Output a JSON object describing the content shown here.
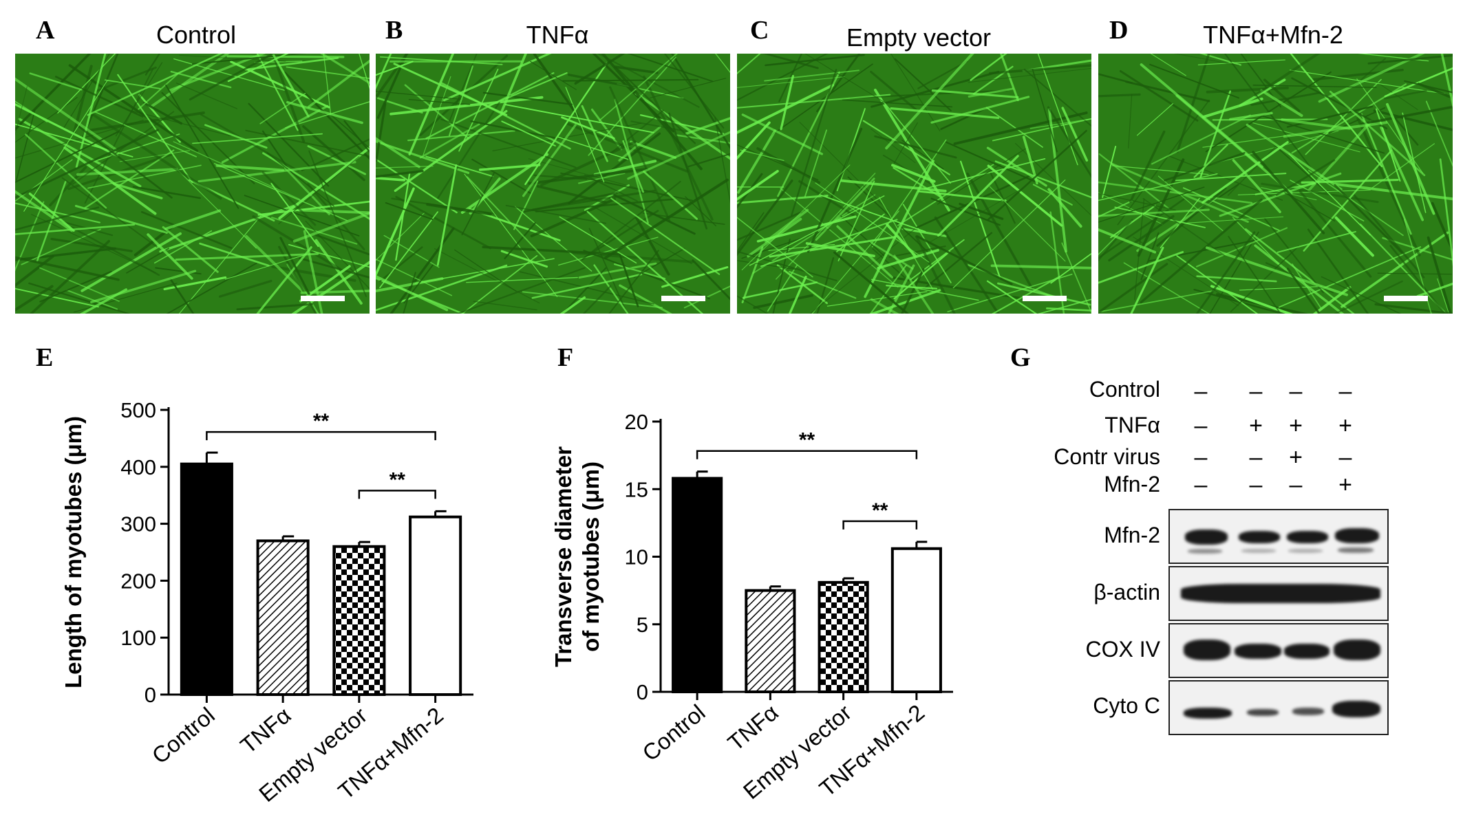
{
  "panels": {
    "A": {
      "letter": "A",
      "title": "Control"
    },
    "B": {
      "letter": "B",
      "title": "TNFα"
    },
    "C": {
      "letter": "C",
      "title": "Empty vector"
    },
    "D": {
      "letter": "D",
      "title": "TNFα+Mfn-2"
    },
    "E": {
      "letter": "E"
    },
    "F": {
      "letter": "F"
    },
    "G": {
      "letter": "G"
    }
  },
  "chart_data": [
    {
      "type": "bar",
      "title": "",
      "ylabel": "Length of myotubes (μm)",
      "xlabel": "",
      "categories": [
        "Control",
        "TNFα",
        "Empty vector",
        "TNFα+Mfn-2"
      ],
      "values": [
        405,
        270,
        260,
        312
      ],
      "errors": [
        20,
        8,
        8,
        10
      ],
      "ylim": [
        0,
        500
      ],
      "yticks": [
        "0",
        "100",
        "200",
        "300",
        "400",
        "500"
      ],
      "significance": [
        {
          "from": "Control",
          "to": "TNFα+Mfn-2",
          "label": "**"
        },
        {
          "from": "Empty vector",
          "to": "TNFα+Mfn-2",
          "label": "**"
        }
      ]
    },
    {
      "type": "bar",
      "title": "",
      "ylabel": "Transverse diameter of myotubes (μm)",
      "ylabel_lines": [
        "Transverse diameter",
        "of myotubes (μm)"
      ],
      "xlabel": "",
      "categories": [
        "Control",
        "TNFα",
        "Empty vector",
        "TNFα+Mfn-2"
      ],
      "values": [
        15.8,
        7.5,
        8.1,
        10.6
      ],
      "errors": [
        0.5,
        0.3,
        0.3,
        0.5
      ],
      "ylim": [
        0,
        20
      ],
      "yticks": [
        "0",
        "5",
        "10",
        "15",
        "20"
      ],
      "significance": [
        {
          "from": "Control",
          "to": "TNFα+Mfn-2",
          "label": "**"
        },
        {
          "from": "Empty vector",
          "to": "TNFα+Mfn-2",
          "label": "**"
        }
      ]
    }
  ],
  "western_blot": {
    "conditions": [
      {
        "label": "Control",
        "signs": [
          "–",
          "–",
          "–",
          "–"
        ]
      },
      {
        "label": "TNFα",
        "signs": [
          "–",
          "+",
          "+",
          "+"
        ]
      },
      {
        "label": "Contr virus",
        "signs": [
          "–",
          "–",
          "+",
          "–"
        ]
      },
      {
        "label": "Mfn-2",
        "signs": [
          "–",
          "–",
          "–",
          "+"
        ]
      }
    ],
    "blots": [
      {
        "label": "Mfn-2"
      },
      {
        "label": "β-actin"
      },
      {
        "label": "COX IV"
      },
      {
        "label": "Cyto C"
      }
    ]
  }
}
